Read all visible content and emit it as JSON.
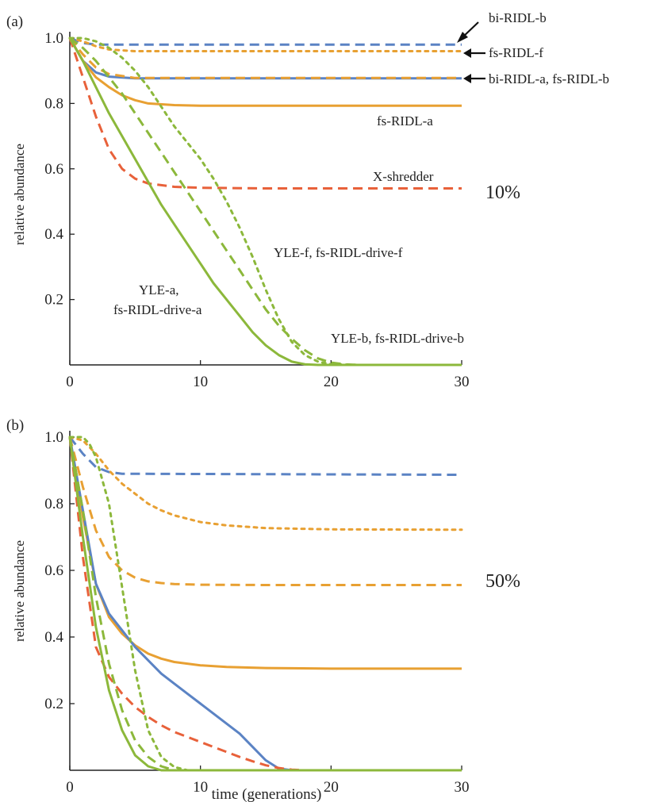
{
  "colors": {
    "blue": "#5b83c4",
    "orange": "#e8a032",
    "red": "#e8613a",
    "green": "#8cb83b",
    "axis": "#222222"
  },
  "shared": {
    "ylabel": "relative abundance",
    "xlabel": "time (generations)",
    "xticks": [
      "0",
      "10",
      "20",
      "30"
    ],
    "yticks": [
      "0.2",
      "0.4",
      "0.6",
      "0.8",
      "1.0"
    ]
  },
  "chart_data": [
    {
      "panel": "(a)",
      "panel_letter": "a",
      "type": "line",
      "release_label": "10%",
      "xlabel": "",
      "ylabel": "relative abundance",
      "xlim": [
        0,
        30
      ],
      "ylim": [
        0,
        1.0
      ],
      "grid": false,
      "series": [
        {
          "key": "bi-b",
          "color": "blue",
          "dash": "dashed",
          "x": [
            0,
            1,
            2,
            30
          ],
          "y": [
            1.0,
            0.985,
            0.98,
            0.98
          ]
        },
        {
          "key": "fs-f",
          "color": "orange",
          "dash": "dotted",
          "x": [
            0,
            1,
            2,
            3,
            5,
            30
          ],
          "y": [
            1.0,
            0.99,
            0.975,
            0.965,
            0.96,
            0.96
          ]
        },
        {
          "key": "bi-a",
          "color": "blue",
          "dash": "solid",
          "x": [
            0,
            1,
            2,
            3,
            5,
            30
          ],
          "y": [
            1.0,
            0.93,
            0.895,
            0.882,
            0.877,
            0.877
          ]
        },
        {
          "key": "fs-b",
          "color": "orange",
          "dash": "dashed",
          "x": [
            0,
            1,
            2,
            3,
            5,
            30
          ],
          "y": [
            1.0,
            0.95,
            0.91,
            0.89,
            0.878,
            0.878
          ]
        },
        {
          "key": "fs-a",
          "color": "orange",
          "dash": "solid",
          "x": [
            0,
            1,
            2,
            3,
            4,
            5,
            6,
            8,
            10,
            30
          ],
          "y": [
            1.0,
            0.93,
            0.88,
            0.85,
            0.825,
            0.81,
            0.8,
            0.795,
            0.793,
            0.793
          ]
        },
        {
          "key": "xshred",
          "color": "red",
          "dash": "dashed",
          "x": [
            0,
            1,
            2,
            3,
            4,
            5,
            6,
            8,
            10,
            15,
            30
          ],
          "y": [
            1.0,
            0.88,
            0.76,
            0.66,
            0.6,
            0.57,
            0.555,
            0.545,
            0.542,
            0.54,
            0.54
          ]
        },
        {
          "key": "yle-f",
          "color": "green",
          "dash": "dotted",
          "x": [
            0,
            1,
            2,
            3,
            4,
            5,
            6,
            7,
            8,
            9,
            10,
            11,
            12,
            13,
            14,
            15,
            16,
            17,
            18,
            19,
            20,
            22,
            30
          ],
          "y": [
            1.0,
            1.0,
            0.99,
            0.97,
            0.94,
            0.9,
            0.85,
            0.79,
            0.73,
            0.68,
            0.63,
            0.57,
            0.5,
            0.42,
            0.33,
            0.23,
            0.14,
            0.07,
            0.03,
            0.01,
            0.002,
            0.0,
            0.0
          ]
        },
        {
          "key": "yle-b",
          "color": "green",
          "dash": "dashed",
          "x": [
            0,
            1,
            2,
            3,
            4,
            5,
            6,
            7,
            8,
            9,
            10,
            11,
            12,
            13,
            14,
            15,
            16,
            17,
            18,
            19,
            20,
            21,
            22,
            30
          ],
          "y": [
            1.0,
            0.97,
            0.93,
            0.88,
            0.83,
            0.77,
            0.71,
            0.65,
            0.59,
            0.53,
            0.47,
            0.41,
            0.35,
            0.29,
            0.23,
            0.17,
            0.12,
            0.08,
            0.045,
            0.02,
            0.007,
            0.002,
            0.0,
            0.0
          ]
        },
        {
          "key": "yle-a",
          "color": "green",
          "dash": "solid",
          "x": [
            0,
            1,
            2,
            3,
            4,
            5,
            6,
            7,
            8,
            9,
            10,
            11,
            12,
            13,
            14,
            15,
            16,
            17,
            18,
            19,
            30
          ],
          "y": [
            1.0,
            0.93,
            0.85,
            0.77,
            0.7,
            0.63,
            0.56,
            0.49,
            0.43,
            0.37,
            0.31,
            0.25,
            0.2,
            0.15,
            0.1,
            0.06,
            0.03,
            0.01,
            0.002,
            0.0,
            0.0
          ]
        }
      ],
      "annotations": [
        {
          "key": "bi-b",
          "text": "bi-RIDL-b",
          "arrow": true
        },
        {
          "key": "fs-f",
          "text": "fs-RIDL-f",
          "arrow": true
        },
        {
          "key": "bi-a-fs-b",
          "text": "bi-RIDL-a, fs-RIDL-b",
          "arrow": true
        },
        {
          "key": "fs-a",
          "text": "fs-RIDL-a",
          "arrow": false
        },
        {
          "key": "xshred",
          "text": "X-shredder",
          "arrow": false
        },
        {
          "key": "yle-f",
          "text": "YLE-f, fs-RIDL-drive-f",
          "arrow": false
        },
        {
          "key": "yle-a-1",
          "text": "YLE-a,",
          "arrow": false
        },
        {
          "key": "yle-a-2",
          "text": "fs-RIDL-drive-a",
          "arrow": false
        },
        {
          "key": "yle-b",
          "text": "YLE-b, fs-RIDL-drive-b",
          "arrow": false
        }
      ]
    },
    {
      "panel": "(b)",
      "panel_letter": "b",
      "type": "line",
      "release_label": "50%",
      "xlabel": "time (generations)",
      "ylabel": "relative abundance",
      "xlim": [
        0,
        30
      ],
      "ylim": [
        0,
        1.0
      ],
      "grid": false,
      "series": [
        {
          "key": "bi-b",
          "color": "blue",
          "dash": "dashed",
          "x": [
            0,
            1,
            2,
            3,
            4,
            30
          ],
          "y": [
            1.0,
            0.95,
            0.91,
            0.895,
            0.89,
            0.887
          ]
        },
        {
          "key": "fs-f",
          "color": "orange",
          "dash": "dotted",
          "x": [
            0,
            1,
            2,
            3,
            4,
            5,
            6,
            7,
            8,
            10,
            12,
            15,
            20,
            30
          ],
          "y": [
            1.0,
            0.99,
            0.95,
            0.9,
            0.86,
            0.83,
            0.8,
            0.78,
            0.765,
            0.745,
            0.735,
            0.727,
            0.723,
            0.722
          ]
        },
        {
          "key": "fs-b",
          "color": "orange",
          "dash": "dashed",
          "x": [
            0,
            1,
            2,
            3,
            4,
            5,
            6,
            7,
            8,
            10,
            15,
            30
          ],
          "y": [
            1.0,
            0.85,
            0.72,
            0.64,
            0.6,
            0.578,
            0.567,
            0.562,
            0.559,
            0.557,
            0.556,
            0.556
          ]
        },
        {
          "key": "fs-a",
          "color": "orange",
          "dash": "solid",
          "x": [
            0,
            1,
            2,
            3,
            4,
            5,
            6,
            7,
            8,
            10,
            12,
            15,
            20,
            30
          ],
          "y": [
            1.0,
            0.76,
            0.56,
            0.46,
            0.41,
            0.375,
            0.35,
            0.335,
            0.325,
            0.315,
            0.31,
            0.307,
            0.305,
            0.305
          ]
        },
        {
          "key": "bi-a",
          "color": "blue",
          "dash": "solid",
          "x": [
            0,
            1,
            2,
            3,
            4,
            5,
            6,
            7,
            8,
            9,
            10,
            11,
            12,
            13,
            14,
            15,
            16,
            17,
            30
          ],
          "y": [
            1.0,
            0.78,
            0.56,
            0.47,
            0.42,
            0.37,
            0.33,
            0.29,
            0.26,
            0.23,
            0.2,
            0.17,
            0.14,
            0.11,
            0.07,
            0.03,
            0.005,
            0.0,
            0.0
          ]
        },
        {
          "key": "xshred",
          "color": "red",
          "dash": "dashed",
          "x": [
            0,
            1,
            2,
            3,
            4,
            5,
            6,
            7,
            8,
            9,
            10,
            11,
            12,
            13,
            14,
            15,
            16,
            17,
            18,
            30
          ],
          "y": [
            1.0,
            0.64,
            0.37,
            0.28,
            0.23,
            0.19,
            0.16,
            0.135,
            0.115,
            0.1,
            0.085,
            0.07,
            0.055,
            0.04,
            0.027,
            0.015,
            0.007,
            0.002,
            0.0,
            0.0
          ]
        },
        {
          "key": "yle-f",
          "color": "green",
          "dash": "dotted",
          "x": [
            0,
            1,
            1.5,
            2,
            3,
            4,
            5,
            6,
            7,
            8,
            9,
            30
          ],
          "y": [
            1.0,
            1.0,
            0.98,
            0.94,
            0.8,
            0.55,
            0.3,
            0.12,
            0.04,
            0.01,
            0.0,
            0.0
          ]
        },
        {
          "key": "yle-b",
          "color": "green",
          "dash": "dashed",
          "x": [
            0,
            1,
            2,
            3,
            4,
            5,
            6,
            7,
            8,
            30
          ],
          "y": [
            1.0,
            0.78,
            0.52,
            0.32,
            0.18,
            0.09,
            0.04,
            0.012,
            0.0,
            0.0
          ]
        },
        {
          "key": "yle-a",
          "color": "green",
          "dash": "solid",
          "x": [
            0,
            1,
            2,
            3,
            4,
            5,
            6,
            7,
            30
          ],
          "y": [
            1.0,
            0.7,
            0.43,
            0.24,
            0.12,
            0.045,
            0.012,
            0.0,
            0.0
          ]
        }
      ],
      "annotations": []
    }
  ]
}
